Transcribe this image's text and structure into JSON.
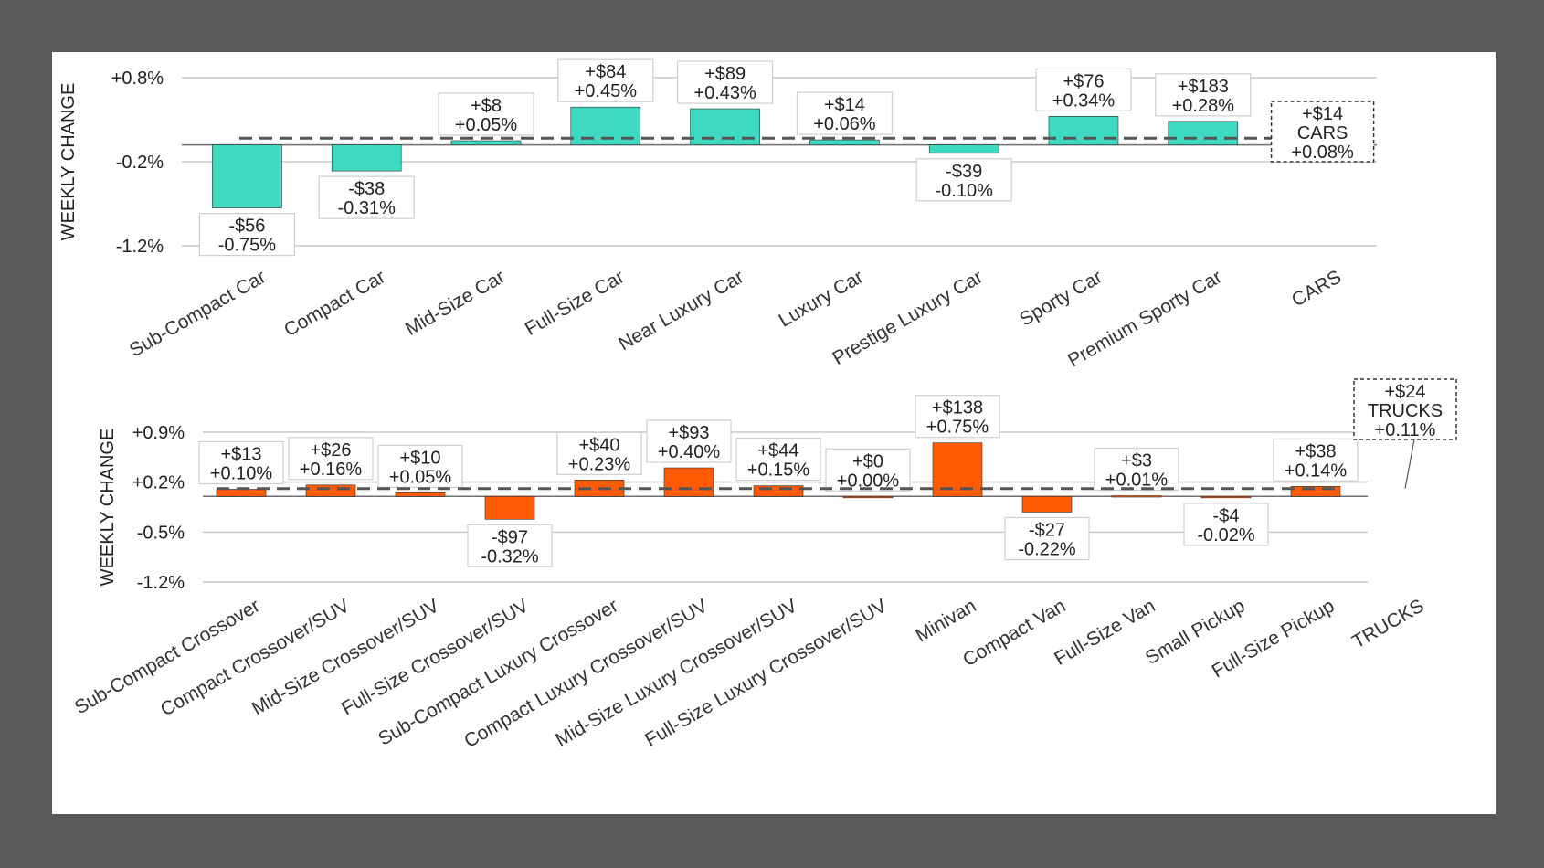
{
  "colors": {
    "cars": "#3dd9c1",
    "trucks": "#ff5a05",
    "background": "#595959",
    "panel": "#ffffff"
  },
  "chart_data": [
    {
      "type": "bar",
      "title": "",
      "xlabel": "",
      "ylabel": "WEEKLY CHANGE",
      "ylim": [
        -1.2,
        0.8
      ],
      "yticks": [
        0.8,
        -0.2,
        -1.2
      ],
      "ytick_labels": [
        "+0.8%",
        "-0.2%",
        "-1.2%"
      ],
      "categories": [
        "Sub-Compact Car",
        "Compact Car",
        "Mid-Size Car",
        "Full-Size Car",
        "Near Luxury Car",
        "Luxury Car",
        "Prestige Luxury Car",
        "Sporty Car",
        "Premium Sporty Car",
        "CARS"
      ],
      "values": [
        -0.75,
        -0.31,
        0.05,
        0.45,
        0.43,
        0.06,
        -0.1,
        0.34,
        0.28,
        null
      ],
      "dollar_labels": [
        "-$56",
        "-$38",
        "+$8",
        "+$84",
        "+$89",
        "+$14",
        "-$39",
        "+$76",
        "+$183",
        null
      ],
      "pct_labels": [
        "-0.75%",
        "-0.31%",
        "+0.05%",
        "+0.45%",
        "+0.43%",
        "+0.06%",
        "-0.10%",
        "+0.34%",
        "+0.28%",
        null
      ],
      "average_line": 0.08,
      "total": {
        "name": "CARS",
        "dollar": "+$14",
        "pct": "+0.08%",
        "value": 0.08
      }
    },
    {
      "type": "bar",
      "title": "",
      "xlabel": "",
      "ylabel": "WEEKLY CHANGE",
      "ylim": [
        -1.2,
        0.9
      ],
      "yticks": [
        0.9,
        0.2,
        -0.5,
        -1.2
      ],
      "ytick_labels": [
        "+0.9%",
        "+0.2%",
        "-0.5%",
        "-1.2%"
      ],
      "categories": [
        "Sub-Compact Crossover",
        "Compact Crossover/SUV",
        "Mid-Size Crossover/SUV",
        "Full-Size Crossover/SUV",
        "Sub-Compact Luxury Crossover",
        "Compact Luxury Crossover/SUV",
        "Mid-Size Luxury Crossover/SUV",
        "Full-Size Luxury Crossover/SUV",
        "Minivan",
        "Compact Van",
        "Full-Size Van",
        "Small Pickup",
        "Full-Size Pickup",
        "TRUCKS"
      ],
      "values": [
        0.1,
        0.16,
        0.05,
        -0.32,
        0.23,
        0.4,
        0.15,
        0.0,
        0.75,
        -0.22,
        0.01,
        -0.02,
        0.14,
        null
      ],
      "dollar_labels": [
        "+$13",
        "+$26",
        "+$10",
        "-$97",
        "+$40",
        "+$93",
        "+$44",
        "+$0",
        "+$138",
        "-$27",
        "+$3",
        "-$4",
        "+$38",
        null
      ],
      "pct_labels": [
        "+0.10%",
        "+0.16%",
        "+0.05%",
        "-0.32%",
        "+0.23%",
        "+0.40%",
        "+0.15%",
        "+0.00%",
        "+0.75%",
        "-0.22%",
        "+0.01%",
        "-0.02%",
        "+0.14%",
        null
      ],
      "average_line": 0.11,
      "total": {
        "name": "TRUCKS",
        "dollar": "+$24",
        "pct": "+0.11%",
        "value": 0.11
      }
    }
  ]
}
